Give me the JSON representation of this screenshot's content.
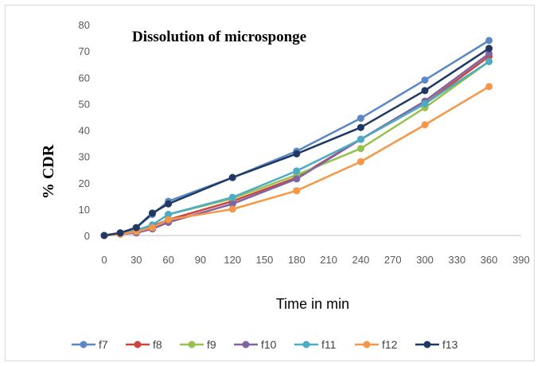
{
  "chart_data": {
    "type": "line",
    "title": "Dissolution of microsponge",
    "xlabel": "Time in min",
    "ylabel": "% CDR",
    "xlim": [
      0,
      390
    ],
    "ylim": [
      0,
      80
    ],
    "xticks": [
      0,
      30,
      60,
      90,
      120,
      150,
      180,
      210,
      240,
      270,
      300,
      330,
      360,
      390
    ],
    "yticks": [
      0,
      10,
      20,
      30,
      40,
      50,
      60,
      70,
      80
    ],
    "grid": false,
    "legend_position": "bottom",
    "x": [
      0,
      15,
      30,
      45,
      60,
      120,
      180,
      240,
      300,
      360
    ],
    "series": [
      {
        "name": "f7",
        "color": "#5b87c7",
        "values": [
          0,
          1,
          3,
          8,
          13,
          22,
          32,
          44.5,
          59,
          74
        ]
      },
      {
        "name": "f8",
        "color": "#c9463d",
        "values": [
          0,
          1,
          2,
          3.5,
          6,
          13,
          22,
          36.5,
          50,
          68
        ]
      },
      {
        "name": "f9",
        "color": "#98c04e",
        "values": [
          0,
          1,
          2,
          4,
          8,
          14,
          23,
          33,
          48.5,
          66
        ]
      },
      {
        "name": "f10",
        "color": "#8064a2",
        "values": [
          0,
          0.5,
          1,
          2.5,
          5,
          12,
          21.5,
          36.5,
          51,
          69
        ]
      },
      {
        "name": "f11",
        "color": "#4bacc6",
        "values": [
          0,
          1,
          2,
          4,
          8,
          14.5,
          24.5,
          36.5,
          50,
          66
        ]
      },
      {
        "name": "f12",
        "color": "#f79646",
        "values": [
          0,
          0.5,
          1.5,
          3,
          6,
          10,
          17,
          28,
          42,
          56.5
        ]
      },
      {
        "name": "f13",
        "color": "#1f3864",
        "values": [
          0,
          1,
          3,
          8.5,
          12,
          22,
          31,
          41,
          55,
          71
        ]
      }
    ]
  }
}
